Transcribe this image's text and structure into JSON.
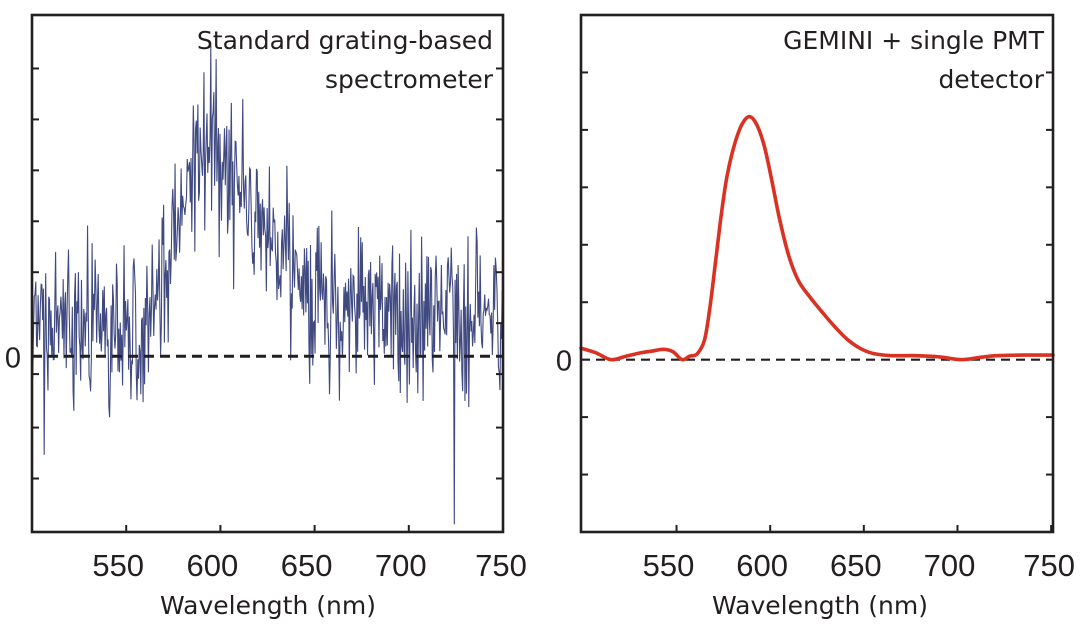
{
  "chart_data": [
    {
      "type": "line",
      "panel": "left",
      "annotation": [
        "Standard grating-based",
        "spectrometer"
      ],
      "annotation_placement": "top-right",
      "xlabel": "Wavelength (nm)",
      "ylabel": "",
      "xlim": [
        500,
        750
      ],
      "ylim": [
        -3.45,
        6.7
      ],
      "x_ticks": [
        550,
        600,
        650,
        700,
        750
      ],
      "x_tick_labels": [
        "550",
        "600",
        "650",
        "700",
        "750"
      ],
      "y_ticks": [
        -2.4,
        -1.4,
        -0.35,
        0.65,
        1.65,
        2.65,
        3.65,
        4.65,
        5.65
      ],
      "y_tick_labels_shown": [
        {
          "value": 0,
          "label": "0"
        }
      ],
      "zero_line": {
        "style": "dashed",
        "color": "#231f20"
      },
      "grid": false,
      "series": [
        {
          "name": "Standard grating-based spectrometer",
          "color": "#1f2a6b",
          "style": "noisy",
          "samples": 620,
          "noise_std": 0.75,
          "noise_seed": 7,
          "mean_envelope": {
            "x": [
              500,
              520,
              540,
              560,
              572,
              576,
              582,
              590,
              598,
              606,
              614,
              622,
              632,
              642,
              655,
              670,
              690,
              710,
              730,
              750
            ],
            "y": [
              0.5,
              0.55,
              0.6,
              0.75,
              1.1,
              2.4,
              3.7,
              4.2,
              4.1,
              3.6,
              3.0,
              2.4,
              1.9,
              1.4,
              1.1,
              0.9,
              0.8,
              0.75,
              0.8,
              0.8
            ]
          },
          "notable_extrema": [
            {
              "x": 724,
              "y": -3.3
            },
            {
              "x": 595,
              "y": 6.1
            }
          ]
        }
      ]
    },
    {
      "type": "line",
      "panel": "right",
      "annotation": [
        "GEMINI + single PMT",
        "detector"
      ],
      "annotation_placement": "top-right",
      "xlabel": "Wavelength (nm)",
      "ylabel": "",
      "xlim": [
        499,
        751
      ],
      "ylim": [
        -3.0,
        6.0
      ],
      "x_ticks": [
        550,
        600,
        650,
        700,
        750
      ],
      "x_tick_labels": [
        "550",
        "600",
        "650",
        "700",
        "750"
      ],
      "y_ticks": [
        -2,
        -1,
        1,
        2,
        3,
        4,
        5
      ],
      "y_tick_labels_shown": [
        {
          "value": 0,
          "label": "0"
        }
      ],
      "zero_line": {
        "style": "dashed",
        "color": "#231f20"
      },
      "grid": false,
      "series": [
        {
          "name": "GEMINI + single PMT detector",
          "color": "#d93223",
          "style": "smooth",
          "x": [
            499,
            507,
            515,
            523,
            531,
            537,
            543,
            548,
            553,
            557,
            561,
            565,
            568,
            571,
            574,
            577,
            581,
            585,
            589,
            593,
            597,
            601,
            605,
            610,
            615,
            621,
            629,
            636,
            642,
            649,
            656,
            665,
            678,
            690,
            702,
            712,
            721,
            735,
            751
          ],
          "y": [
            0.2,
            0.12,
            0.0,
            0.06,
            0.12,
            0.15,
            0.18,
            0.14,
            0.0,
            0.06,
            0.1,
            0.35,
            0.95,
            1.75,
            2.55,
            3.2,
            3.75,
            4.1,
            4.23,
            4.08,
            3.7,
            3.1,
            2.45,
            1.8,
            1.38,
            1.1,
            0.78,
            0.52,
            0.33,
            0.18,
            0.1,
            0.07,
            0.07,
            0.05,
            0.0,
            0.04,
            0.07,
            0.08,
            0.08
          ]
        }
      ]
    }
  ]
}
